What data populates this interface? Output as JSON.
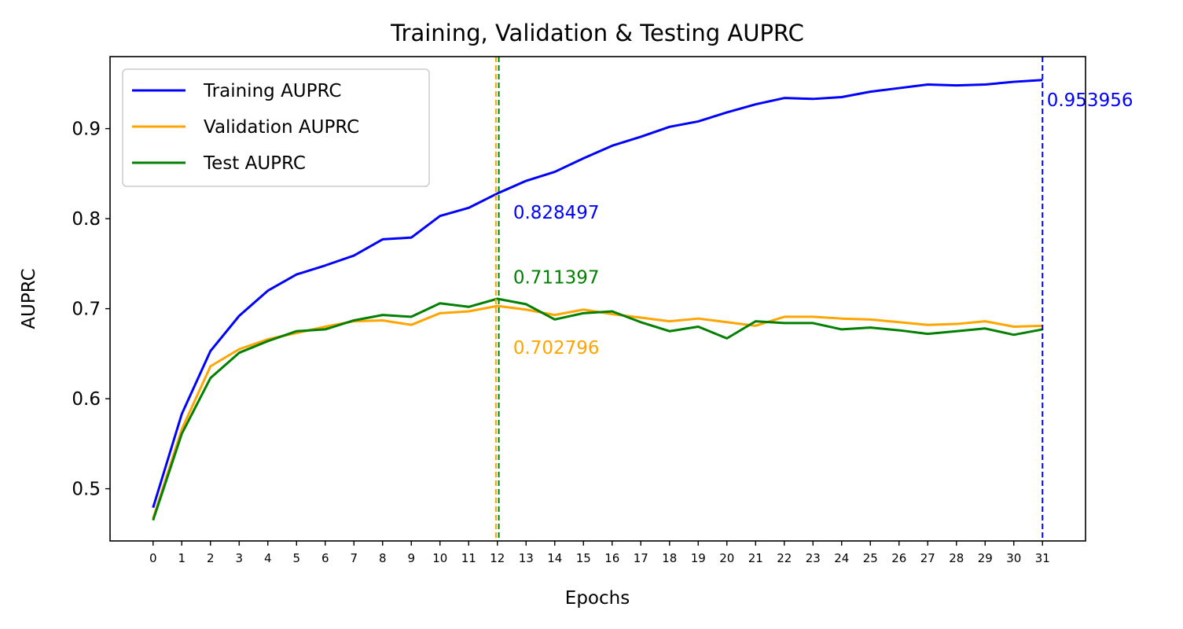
{
  "chart_data": {
    "type": "line",
    "title": "Training, Validation & Testing AUPRC",
    "xlabel": "Epochs",
    "ylabel": "AUPRC",
    "xlim": [
      -1.5,
      32.5
    ],
    "ylim": [
      0.442,
      0.98
    ],
    "x": [
      0,
      1,
      2,
      3,
      4,
      5,
      6,
      7,
      8,
      9,
      10,
      11,
      12,
      13,
      14,
      15,
      16,
      17,
      18,
      19,
      20,
      21,
      22,
      23,
      24,
      25,
      26,
      27,
      28,
      29,
      30,
      31
    ],
    "xticks": [
      "0",
      "1",
      "2",
      "3",
      "4",
      "5",
      "6",
      "7",
      "8",
      "9",
      "10",
      "11",
      "12",
      "13",
      "14",
      "15",
      "16",
      "17",
      "18",
      "19",
      "20",
      "21",
      "22",
      "23",
      "24",
      "25",
      "26",
      "27",
      "28",
      "29",
      "30",
      "31"
    ],
    "yticks": [
      0.5,
      0.6,
      0.7,
      0.8,
      0.9
    ],
    "ytick_labels": [
      "0.5",
      "0.6",
      "0.7",
      "0.8",
      "0.9"
    ],
    "grid": false,
    "legend_position": "top-left",
    "series": [
      {
        "name": "Training AUPRC",
        "color": "#0000ff",
        "values": [
          0.479,
          0.583,
          0.653,
          0.692,
          0.72,
          0.738,
          0.748,
          0.759,
          0.777,
          0.779,
          0.803,
          0.812,
          0.828,
          0.842,
          0.852,
          0.867,
          0.881,
          0.891,
          0.902,
          0.908,
          0.918,
          0.927,
          0.934,
          0.933,
          0.935,
          0.941,
          0.945,
          0.949,
          0.948,
          0.949,
          0.952,
          0.954
        ]
      },
      {
        "name": "Validation AUPRC",
        "color": "#ffa500",
        "values": [
          0.467,
          0.566,
          0.636,
          0.655,
          0.666,
          0.673,
          0.68,
          0.686,
          0.687,
          0.682,
          0.695,
          0.697,
          0.703,
          0.699,
          0.693,
          0.699,
          0.694,
          0.69,
          0.686,
          0.689,
          0.685,
          0.681,
          0.691,
          0.691,
          0.689,
          0.688,
          0.685,
          0.682,
          0.683,
          0.686,
          0.68,
          0.681
        ]
      },
      {
        "name": "Test AUPRC",
        "color": "#008000",
        "values": [
          0.465,
          0.561,
          0.623,
          0.651,
          0.664,
          0.675,
          0.677,
          0.687,
          0.693,
          0.691,
          0.706,
          0.702,
          0.711,
          0.705,
          0.688,
          0.695,
          0.697,
          0.685,
          0.675,
          0.68,
          0.667,
          0.686,
          0.684,
          0.684,
          0.677,
          0.679,
          0.676,
          0.672,
          0.675,
          0.678,
          0.671,
          0.677
        ]
      }
    ],
    "vlines": [
      {
        "x": 31,
        "color": "#0000ff",
        "style": "dashed"
      },
      {
        "x": 11.95,
        "color": "#ffa500",
        "style": "dashed"
      },
      {
        "x": 12.05,
        "color": "#008000",
        "style": "dashed"
      }
    ],
    "annotations": [
      {
        "text": "0.953956",
        "x": 31.15,
        "y": 0.932,
        "color": "#0000ff"
      },
      {
        "text": "0.828497",
        "x": 12.55,
        "y": 0.807,
        "color": "#0000ff"
      },
      {
        "text": "0.711397",
        "x": 12.55,
        "y": 0.735,
        "color": "#008000"
      },
      {
        "text": "0.702796",
        "x": 12.55,
        "y": 0.657,
        "color": "#ffa500"
      }
    ]
  }
}
